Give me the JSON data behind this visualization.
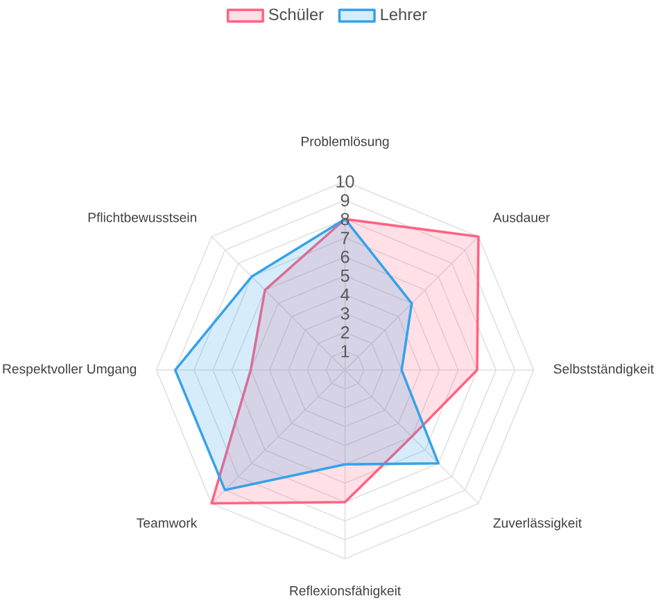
{
  "chart_data": {
    "type": "radar",
    "categories": [
      "Problemlösung",
      "Ausdauer",
      "Selbstständigkeit",
      "Zuverlässigkeit",
      "Reflexionsfähigkeit",
      "Teamwork",
      "Respektvoller Umgang",
      "Pflichtbewusstsein"
    ],
    "series": [
      {
        "name": "Schüler",
        "color": "#ff6384",
        "values": [
          8,
          10,
          7,
          5,
          7,
          10,
          5,
          6
        ]
      },
      {
        "name": "Lehrer",
        "color": "#36a2eb",
        "values": [
          8,
          5,
          3,
          7,
          5,
          9,
          9,
          7
        ]
      }
    ],
    "ylim": [
      0,
      10
    ],
    "yticks": [
      1,
      2,
      3,
      4,
      5,
      6,
      7,
      8,
      9,
      10
    ],
    "grid": true,
    "legend": "top"
  }
}
